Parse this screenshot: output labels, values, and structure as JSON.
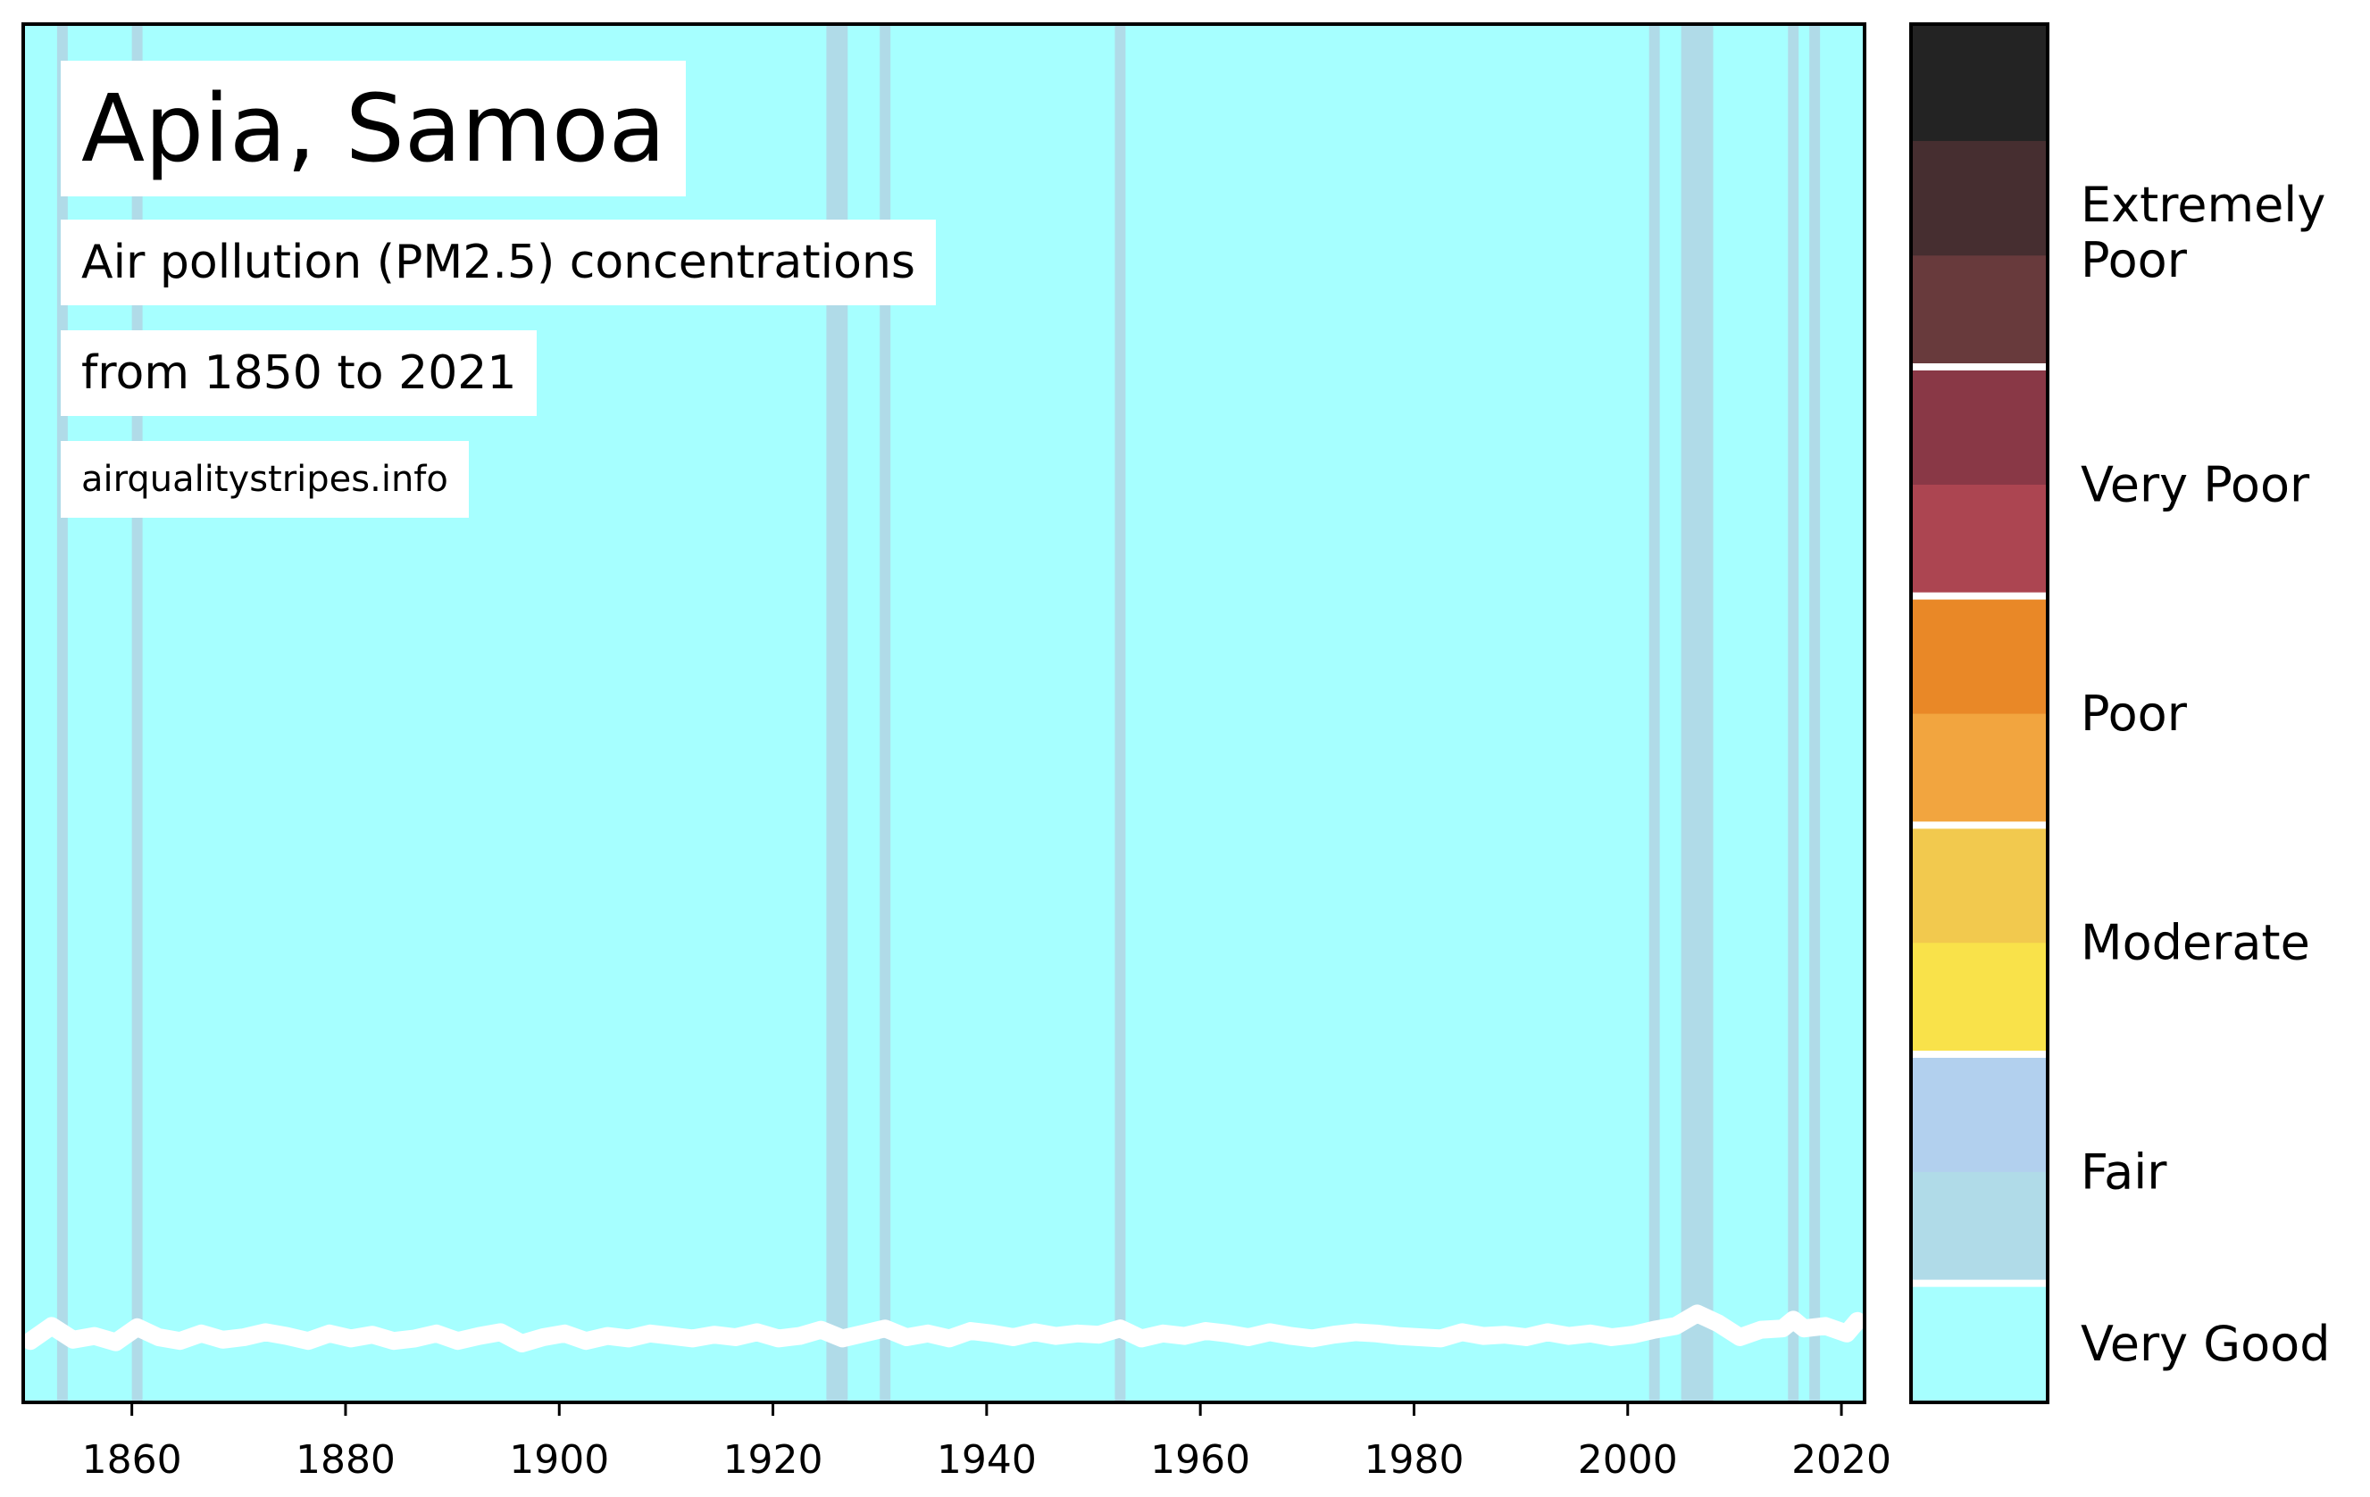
{
  "chart_data": {
    "type": "heatmap",
    "title": "Apia, Samoa",
    "subtitle": "Air pollution (PM2.5) concentrations",
    "date_range": "from 1850 to 2021",
    "website": "airqualitystripes.info",
    "x_start": 1850,
    "x_end": 2022,
    "xticks": [
      1860,
      1880,
      1900,
      1920,
      1940,
      1960,
      1980,
      2000,
      2020
    ],
    "grid": false,
    "legend": "colorbar-right",
    "stripe_colors": {
      "very_good": "#a6ffff",
      "fair": "#b0dbe8"
    },
    "fair_years": [
      1853,
      1860,
      1925,
      1926,
      1930,
      1952,
      2002,
      2005,
      2006,
      2007,
      2015,
      2017
    ],
    "line_color": "#ffffff",
    "line_data": {
      "years": [
        1850,
        1852,
        1854,
        1856,
        1858,
        1860,
        1862,
        1864,
        1866,
        1868,
        1870,
        1872,
        1874,
        1876,
        1878,
        1880,
        1882,
        1884,
        1886,
        1888,
        1890,
        1892,
        1894,
        1896,
        1898,
        1900,
        1902,
        1904,
        1906,
        1908,
        1910,
        1912,
        1914,
        1916,
        1918,
        1920,
        1922,
        1924,
        1926,
        1928,
        1930,
        1932,
        1934,
        1936,
        1938,
        1940,
        1942,
        1944,
        1946,
        1948,
        1950,
        1952,
        1954,
        1956,
        1958,
        1960,
        1962,
        1964,
        1966,
        1968,
        1970,
        1972,
        1974,
        1976,
        1978,
        1980,
        1982,
        1984,
        1986,
        1988,
        1990,
        1992,
        1994,
        1996,
        1998,
        2000,
        2002,
        2004,
        2006,
        2008,
        2010,
        2012,
        2014,
        2015,
        2016,
        2018,
        2020,
        2021
      ],
      "values": [
        5.2,
        6.4,
        5.3,
        5.6,
        5.1,
        6.3,
        5.5,
        5.2,
        5.8,
        5.3,
        5.5,
        5.9,
        5.6,
        5.2,
        5.8,
        5.4,
        5.7,
        5.2,
        5.4,
        5.8,
        5.2,
        5.6,
        5.9,
        5.0,
        5.5,
        5.8,
        5.2,
        5.6,
        5.4,
        5.8,
        5.6,
        5.4,
        5.7,
        5.5,
        5.9,
        5.4,
        5.6,
        6.1,
        5.4,
        5.8,
        6.2,
        5.5,
        5.8,
        5.4,
        6.0,
        5.8,
        5.5,
        5.9,
        5.6,
        5.8,
        5.7,
        6.2,
        5.4,
        5.8,
        5.6,
        6.0,
        5.8,
        5.5,
        5.9,
        5.6,
        5.4,
        5.7,
        5.9,
        5.8,
        5.6,
        5.5,
        5.4,
        5.9,
        5.6,
        5.7,
        5.5,
        5.9,
        5.6,
        5.8,
        5.5,
        5.7,
        6.1,
        6.4,
        7.4,
        6.6,
        5.5,
        6.1,
        6.2,
        6.9,
        6.2,
        6.4,
        5.8,
        6.8
      ]
    },
    "colorbar": {
      "segments": [
        {
          "color": "#a6ffff",
          "bands": 1
        },
        {
          "color": "#b0dbe8",
          "bands": 1
        },
        {
          "color": "#b2d0ee",
          "bands": 1
        },
        {
          "color": "#f9e24a",
          "bands": 1
        },
        {
          "color": "#f2c94e",
          "bands": 1
        },
        {
          "color": "#f2a53f",
          "bands": 1
        },
        {
          "color": "#e98827",
          "bands": 1
        },
        {
          "color": "#ac4551",
          "bands": 1
        },
        {
          "color": "#893846",
          "bands": 1
        },
        {
          "color": "#683a3c",
          "bands": 1
        },
        {
          "color": "#462e30",
          "bands": 1
        },
        {
          "color": "#232323",
          "bands": 1
        }
      ],
      "labels": [
        {
          "lines": [
            "Very Good"
          ],
          "center": 0.5
        },
        {
          "lines": [
            "Fair"
          ],
          "center": 2
        },
        {
          "lines": [
            "Moderate"
          ],
          "center": 4
        },
        {
          "lines": [
            "Poor"
          ],
          "center": 6
        },
        {
          "lines": [
            "Very Poor"
          ],
          "center": 8
        },
        {
          "lines": [
            "Extremely",
            "Poor"
          ],
          "center": 10.2
        }
      ],
      "dividers": [
        1,
        3,
        5,
        7,
        9
      ]
    }
  }
}
